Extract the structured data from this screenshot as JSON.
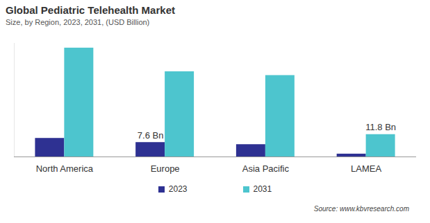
{
  "chart_data": {
    "type": "bar",
    "title": "Global Pediatric Telehealth Market",
    "subtitle": "Size, by Region, 2023, 2031, (USD Billion)",
    "source": "Source: www.kbvresearch.com",
    "categories": [
      "North America",
      "Europe",
      "Asia Pacific",
      "LAMEA"
    ],
    "series": [
      {
        "name": "2023",
        "color": "#2E3192",
        "values": [
          9.8,
          7.6,
          6.5,
          1.5
        ],
        "value_labels": [
          null,
          "7.6 Bn",
          null,
          null
        ]
      },
      {
        "name": "2031",
        "color": "#4DC5CE",
        "values": [
          57.5,
          45,
          43,
          11.8
        ],
        "value_labels": [
          null,
          null,
          null,
          "11.8 Bn"
        ]
      }
    ],
    "ylim": [
      0,
      60
    ],
    "yticks": [],
    "tick_labels": "x",
    "data_labels": true,
    "legend": "bottom",
    "grid": false
  }
}
